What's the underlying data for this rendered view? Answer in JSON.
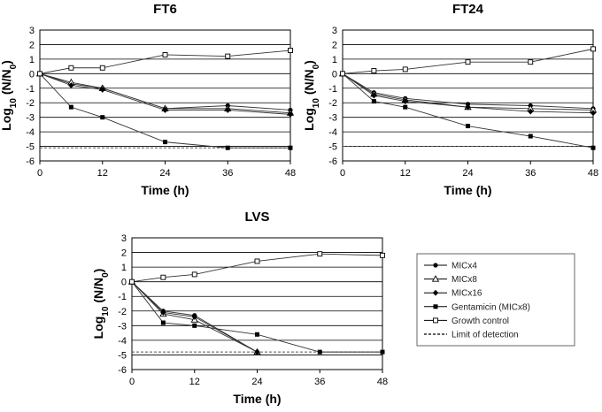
{
  "chart_data": [
    {
      "type": "line",
      "title": "FT6",
      "xlabel": "Time (h)",
      "ylabel": "Log10 (N/N0)",
      "ylabel_parts": {
        "log": "Log",
        "log_sub": "10",
        "open": " (N/N",
        "n_sub": "0",
        "close": ")"
      },
      "x": [
        0,
        6,
        12,
        24,
        36,
        48
      ],
      "xticks": [
        0,
        12,
        24,
        36,
        48
      ],
      "xlim": [
        0,
        48
      ],
      "ylim": [
        -6,
        3
      ],
      "yticks": [
        3,
        2,
        1,
        0,
        -1,
        -2,
        -3,
        -4,
        -5,
        -6
      ],
      "grid": true,
      "detection_limit": -5.1,
      "series": [
        {
          "name": "MICx4",
          "values": [
            0,
            -0.7,
            -1.0,
            -2.4,
            -2.2,
            -2.5
          ]
        },
        {
          "name": "MICx8",
          "values": [
            0,
            -0.6,
            -1.0,
            -2.4,
            -2.4,
            -2.7
          ]
        },
        {
          "name": "MICx16",
          "values": [
            0,
            -0.8,
            -1.1,
            -2.5,
            -2.5,
            -2.8
          ]
        },
        {
          "name": "Gentamicin (MICx8)",
          "values": [
            0,
            -2.3,
            -3.0,
            -4.7,
            -5.1,
            -5.1
          ]
        },
        {
          "name": "Growth control",
          "values": [
            0,
            0.4,
            0.4,
            1.3,
            1.2,
            1.6
          ]
        }
      ]
    },
    {
      "type": "line",
      "title": "FT24",
      "xlabel": "Time (h)",
      "ylabel": "Log10 (N/N0)",
      "ylabel_parts": {
        "log": "Log",
        "log_sub": "10",
        "open": " (N/N",
        "n_sub": "0",
        "close": ")"
      },
      "x": [
        0,
        6,
        12,
        24,
        36,
        48
      ],
      "xticks": [
        0,
        12,
        24,
        36,
        48
      ],
      "xlim": [
        0,
        48
      ],
      "ylim": [
        -6,
        3
      ],
      "yticks": [
        3,
        2,
        1,
        0,
        -1,
        -2,
        -3,
        -4,
        -5,
        -6
      ],
      "grid": true,
      "detection_limit": -5.0,
      "series": [
        {
          "name": "MICx4",
          "values": [
            0,
            -1.3,
            -1.7,
            -2.1,
            -2.2,
            -2.4
          ]
        },
        {
          "name": "MICx8",
          "values": [
            0,
            -1.4,
            -1.8,
            -2.3,
            -2.4,
            -2.5
          ]
        },
        {
          "name": "MICx16",
          "values": [
            0,
            -1.5,
            -1.9,
            -2.3,
            -2.6,
            -2.7
          ]
        },
        {
          "name": "Gentamicin (MICx8)",
          "values": [
            0,
            -1.9,
            -2.3,
            -3.6,
            -4.3,
            -5.1
          ]
        },
        {
          "name": "Growth control",
          "values": [
            0,
            0.2,
            0.3,
            0.8,
            0.8,
            1.7
          ]
        }
      ]
    },
    {
      "type": "line",
      "title": "LVS",
      "xlabel": "Time (h)",
      "ylabel": "Log10 (N/N0)",
      "ylabel_parts": {
        "log": "Log",
        "log_sub": "10",
        "open": " (N/N",
        "n_sub": "0",
        "close": ")"
      },
      "x": [
        0,
        6,
        12,
        24,
        36,
        48
      ],
      "xticks": [
        0,
        12,
        24,
        36,
        48
      ],
      "xlim": [
        0,
        48
      ],
      "ylim": [
        -6,
        3
      ],
      "yticks": [
        3,
        2,
        1,
        0,
        -1,
        -2,
        -3,
        -4,
        -5,
        -6
      ],
      "grid": true,
      "detection_limit": -4.8,
      "series": [
        {
          "name": "MICx4",
          "values": [
            0,
            -2.0,
            -2.3,
            -4.8,
            null,
            null
          ]
        },
        {
          "name": "MICx8",
          "values": [
            0,
            -2.2,
            -2.6,
            -4.8,
            null,
            null
          ]
        },
        {
          "name": "MICx16",
          "values": [
            0,
            -2.1,
            -2.4,
            -4.8,
            null,
            null
          ]
        },
        {
          "name": "Gentamicin (MICx8)",
          "values": [
            0,
            -2.8,
            -3.0,
            -3.6,
            -4.8,
            -4.8
          ]
        },
        {
          "name": "Growth control",
          "values": [
            0,
            0.3,
            0.5,
            1.4,
            1.9,
            1.8
          ]
        }
      ]
    }
  ],
  "legend": {
    "position": "right of LVS panel",
    "entries": [
      {
        "label": "MICx4",
        "marker": "filled-circle"
      },
      {
        "label": "MICx8",
        "marker": "open-triangle"
      },
      {
        "label": "MICx16",
        "marker": "filled-diamond"
      },
      {
        "label": "Gentamicin (MICx8)",
        "marker": "filled-square"
      },
      {
        "label": "Growth control",
        "marker": "open-square"
      },
      {
        "label": "Limit of detection",
        "marker": "dashed-line"
      }
    ]
  },
  "colors": {
    "line": "#333333",
    "grid": "#000000",
    "detection": "#555555",
    "background": "#ffffff"
  }
}
